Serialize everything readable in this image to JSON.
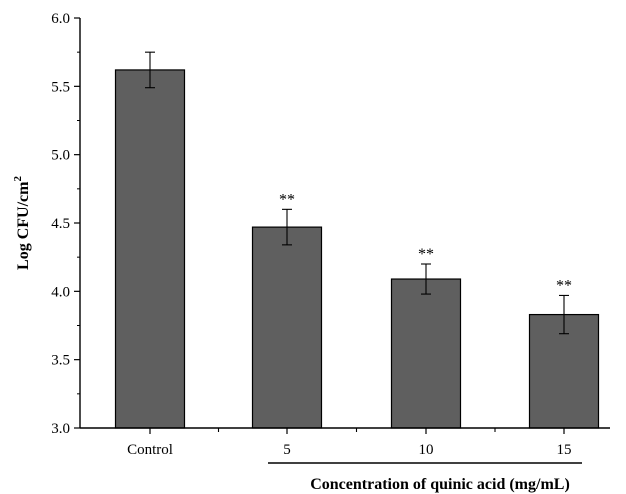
{
  "chart_data": {
    "type": "bar",
    "title": "",
    "ylabel": "Log CFU/cm",
    "ylabel_superscript": "2",
    "xlabel_group": "Concentration of quinic acid (mg/mL)",
    "categories": [
      "Control",
      "5",
      "10",
      "15"
    ],
    "values": [
      5.62,
      4.47,
      4.09,
      3.83
    ],
    "errors": [
      0.13,
      0.13,
      0.11,
      0.14
    ],
    "significance": [
      "",
      "**",
      "**",
      "**"
    ],
    "ylim": [
      3.0,
      6.0
    ],
    "yticks": [
      "3.0",
      "3.5",
      "4.0",
      "4.5",
      "5.0",
      "5.5",
      "6.0"
    ],
    "bar_color": "#5f5f5f",
    "grid": false
  }
}
